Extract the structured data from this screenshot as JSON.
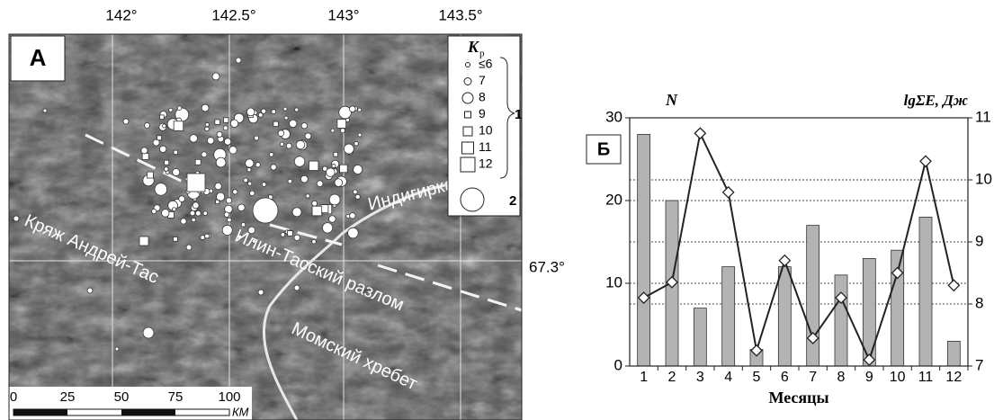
{
  "map": {
    "panel_label": "А",
    "lon_labels": [
      "142°",
      "142.5°",
      "143°",
      "143.5°"
    ],
    "lat_label": "67.3°",
    "places": [
      "Индигирка",
      "Илин-Тасский разлом",
      "Кряж Андрей-Тас",
      "Момский хребет"
    ],
    "legend": {
      "title": "K",
      "title_sub": "р",
      "classes": [
        "≤6",
        "7",
        "8",
        "9",
        "10",
        "11",
        "12"
      ],
      "group_label": "1",
      "big_label": "2"
    },
    "scale": {
      "ticks": [
        "0",
        "25",
        "50",
        "75",
        "100"
      ],
      "unit": "КМ"
    }
  },
  "chart_data": {
    "type": "bar",
    "panel_label": "Б",
    "y_label": "N",
    "y2_label": "lgΣE, Дж",
    "x_label": "Месяцы",
    "categories": [
      "1",
      "2",
      "3",
      "4",
      "5",
      "6",
      "7",
      "8",
      "9",
      "10",
      "11",
      "12"
    ],
    "series": [
      {
        "type": "bar",
        "color": "#b3b3b3",
        "values": [
          28,
          20,
          7,
          12,
          2,
          12,
          17,
          11,
          13,
          14,
          18,
          3
        ]
      },
      {
        "type": "line",
        "axis": "y2",
        "color": "#222222",
        "values": [
          8.1,
          8.35,
          10.75,
          9.8,
          7.25,
          8.7,
          7.45,
          8.1,
          7.1,
          8.5,
          10.3,
          8.3
        ]
      }
    ],
    "ylim": [
      0,
      30
    ],
    "yticks": [
      0,
      10,
      20,
      30
    ],
    "y2lim": [
      7,
      11
    ],
    "y2ticks": [
      7,
      8,
      9,
      10,
      11
    ],
    "grid": true
  }
}
